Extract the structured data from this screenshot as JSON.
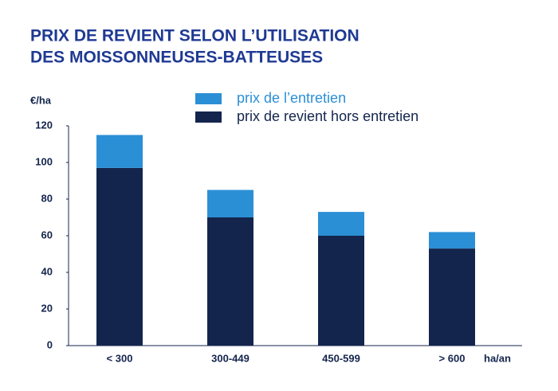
{
  "chart_data": {
    "type": "stacked-bar",
    "title": [
      "PRIX DE REVIENT SELON L’UTILISATION",
      "DES MOISSONNEUSES-BATTEUSES"
    ],
    "y_label": "€/ha",
    "x_label": "ha/an",
    "categories": [
      "< 300",
      "300-449",
      "450-599",
      "> 600"
    ],
    "series": [
      {
        "name": "prix de revient hors entretien",
        "color": "#14254d",
        "values": [
          97,
          70,
          60,
          53
        ]
      },
      {
        "name": "prix de l’entretien",
        "color": "#2b8fd6",
        "values": [
          18,
          15,
          13,
          9
        ]
      }
    ],
    "ylim": [
      0,
      120
    ],
    "yticks": [
      0,
      20,
      40,
      60,
      80,
      100,
      120
    ],
    "grid": false
  }
}
